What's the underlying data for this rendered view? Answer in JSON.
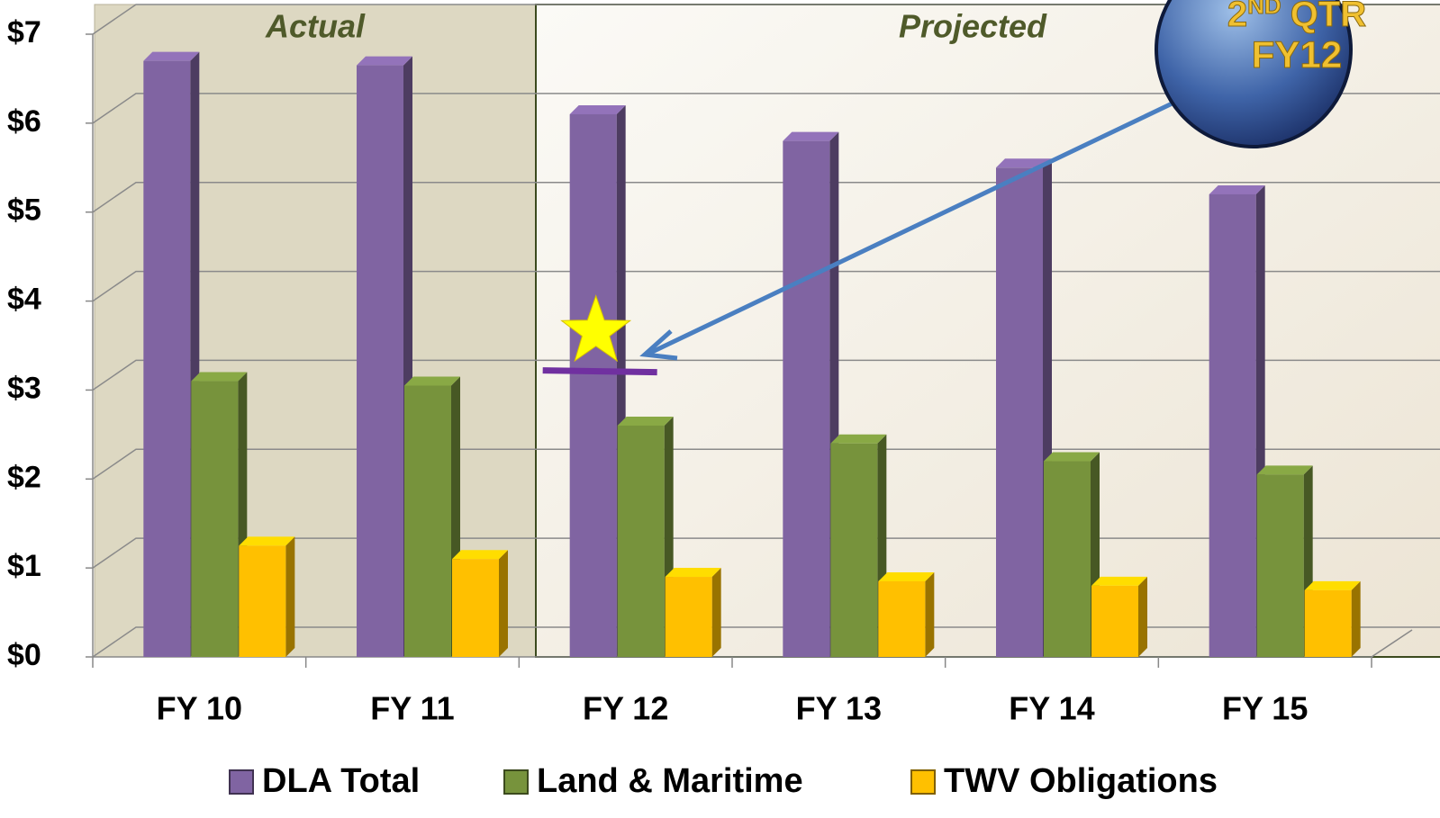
{
  "chart_data": {
    "type": "bar3d",
    "categories": [
      "FY 10",
      "FY 11",
      "FY 12",
      "FY 13",
      "FY 14",
      "FY 15"
    ],
    "series": [
      {
        "name": "DLA Total",
        "color": "#8064a2",
        "values": [
          6.7,
          6.65,
          6.1,
          5.8,
          5.5,
          5.2
        ]
      },
      {
        "name": "Land & Maritime",
        "color": "#77933c",
        "values": [
          3.1,
          3.05,
          2.6,
          2.4,
          2.2,
          2.05
        ]
      },
      {
        "name": "TWV Obligations",
        "color": "#ffc000",
        "values": [
          1.25,
          1.1,
          0.9,
          0.85,
          0.8,
          0.75
        ]
      }
    ],
    "ylim": [
      0,
      7
    ],
    "yticks": [
      {
        "value": 0,
        "label": "$0"
      },
      {
        "value": 1,
        "label": "$1"
      },
      {
        "value": 2,
        "label": "$2"
      },
      {
        "value": 3,
        "label": "$3"
      },
      {
        "value": 4,
        "label": "$4"
      },
      {
        "value": 5,
        "label": "$5"
      },
      {
        "value": 6,
        "label": "$6"
      },
      {
        "value": 7,
        "label": "$7"
      }
    ],
    "grid": true,
    "legend": "bottom",
    "annotations": {
      "actual": "Actual",
      "projected": "Projected"
    },
    "badge": {
      "ordinal": "2",
      "suffix": "ND",
      "quarter": "QTR",
      "year": "FY12"
    },
    "marker": {
      "category": 2,
      "value": 3.2,
      "color": "#7030a0"
    }
  }
}
